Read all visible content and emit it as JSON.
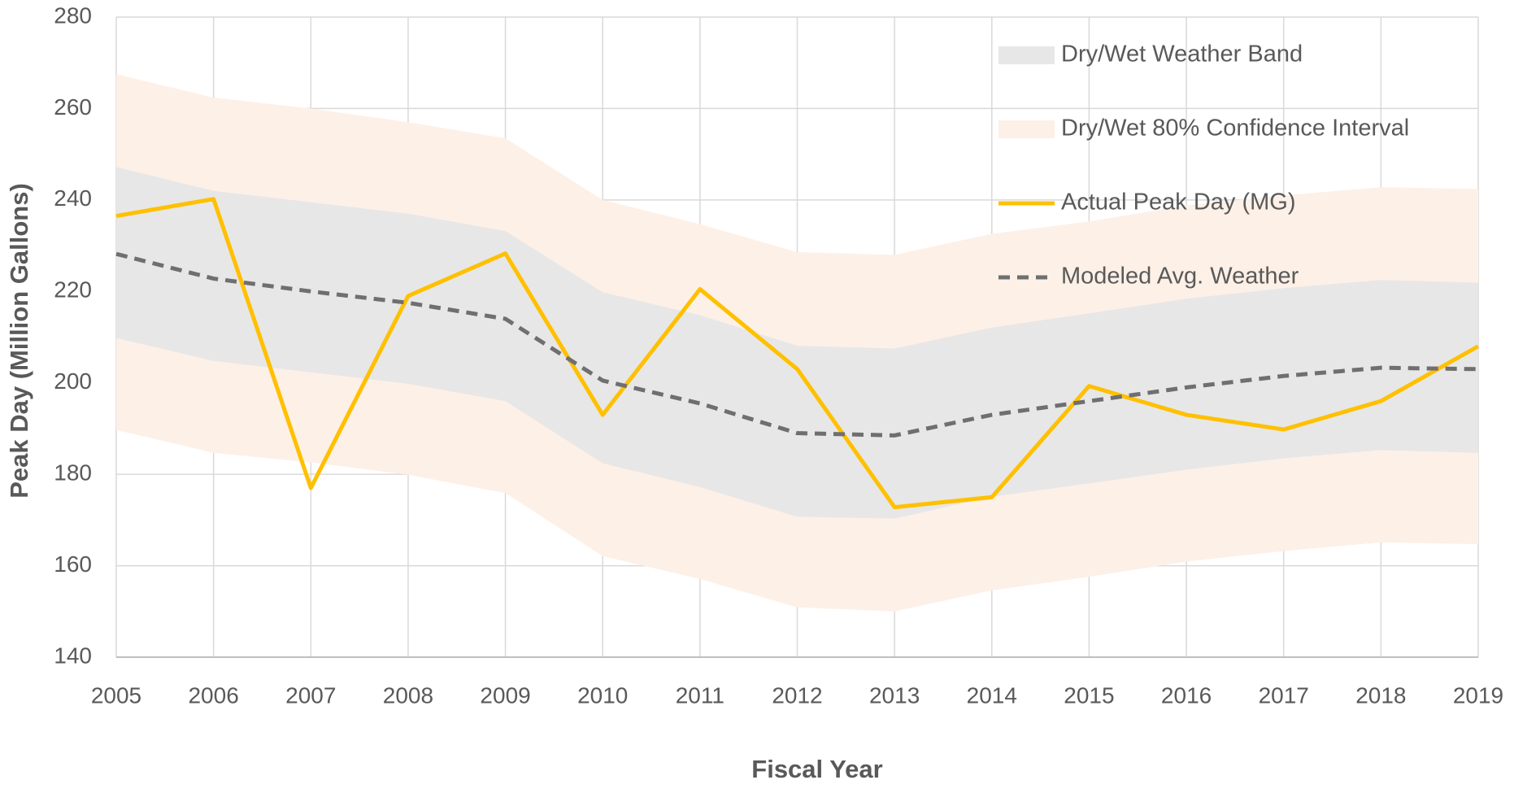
{
  "chart_data": {
    "type": "line",
    "x_label": "Fiscal Year",
    "y_label": "Peak Day (Million Gallons)",
    "x": [
      2005,
      2006,
      2007,
      2008,
      2009,
      2010,
      2011,
      2012,
      2013,
      2014,
      2015,
      2016,
      2017,
      2018,
      2019
    ],
    "xlim": [
      2005,
      2019
    ],
    "xticks": [
      2005,
      2006,
      2007,
      2008,
      2009,
      2010,
      2011,
      2012,
      2013,
      2014,
      2015,
      2016,
      2017,
      2018,
      2019
    ],
    "ylim": [
      140,
      280
    ],
    "yticks": [
      140,
      160,
      180,
      200,
      220,
      240,
      260,
      280
    ],
    "grid": true,
    "legend": "upper right",
    "series": [
      {
        "name": "Dry/Wet Weather Band",
        "type": "band",
        "color": "#e7e7e7",
        "upper": [
          247.2,
          242,
          239.5,
          237,
          233.2,
          219.8,
          214.8,
          208.1,
          207.5,
          212.1,
          215.2,
          218.4,
          220.7,
          222.5,
          221.9
        ],
        "lower": [
          209.8,
          204.8,
          202.3,
          199.8,
          196,
          182.4,
          177.2,
          170.7,
          170.3,
          175.1,
          178,
          181,
          183.5,
          185.3,
          184.7
        ]
      },
      {
        "name": "Dry/Wet 80% Confidence Interval",
        "type": "band",
        "color": "#fdf0e7",
        "upper": [
          267.5,
          262.4,
          260,
          257,
          253.5,
          240,
          234.7,
          228.6,
          228,
          232.6,
          235.3,
          238.8,
          241,
          242.8,
          242.4
        ],
        "lower": [
          189.7,
          184.7,
          182.6,
          179.9,
          175.9,
          162.1,
          157.1,
          150.9,
          150,
          154.6,
          157.6,
          160.9,
          163.2,
          165.1,
          164.7
        ]
      },
      {
        "name": "Actual Peak Day (MG)",
        "type": "line",
        "color": "#ffc000",
        "dashed": false,
        "values": [
          236.5,
          240.2,
          177,
          219,
          228.3,
          193,
          220.5,
          203,
          172.8,
          175,
          199.3,
          193,
          189.8,
          196,
          208
        ]
      },
      {
        "name": "Modeled Avg. Weather",
        "type": "line",
        "color": "#6f6f6f",
        "dashed": true,
        "values": [
          228.2,
          222.8,
          220,
          217.5,
          214,
          200.5,
          195.5,
          189,
          188.5,
          193,
          196,
          199,
          201.5,
          203.3,
          203
        ]
      }
    ]
  }
}
